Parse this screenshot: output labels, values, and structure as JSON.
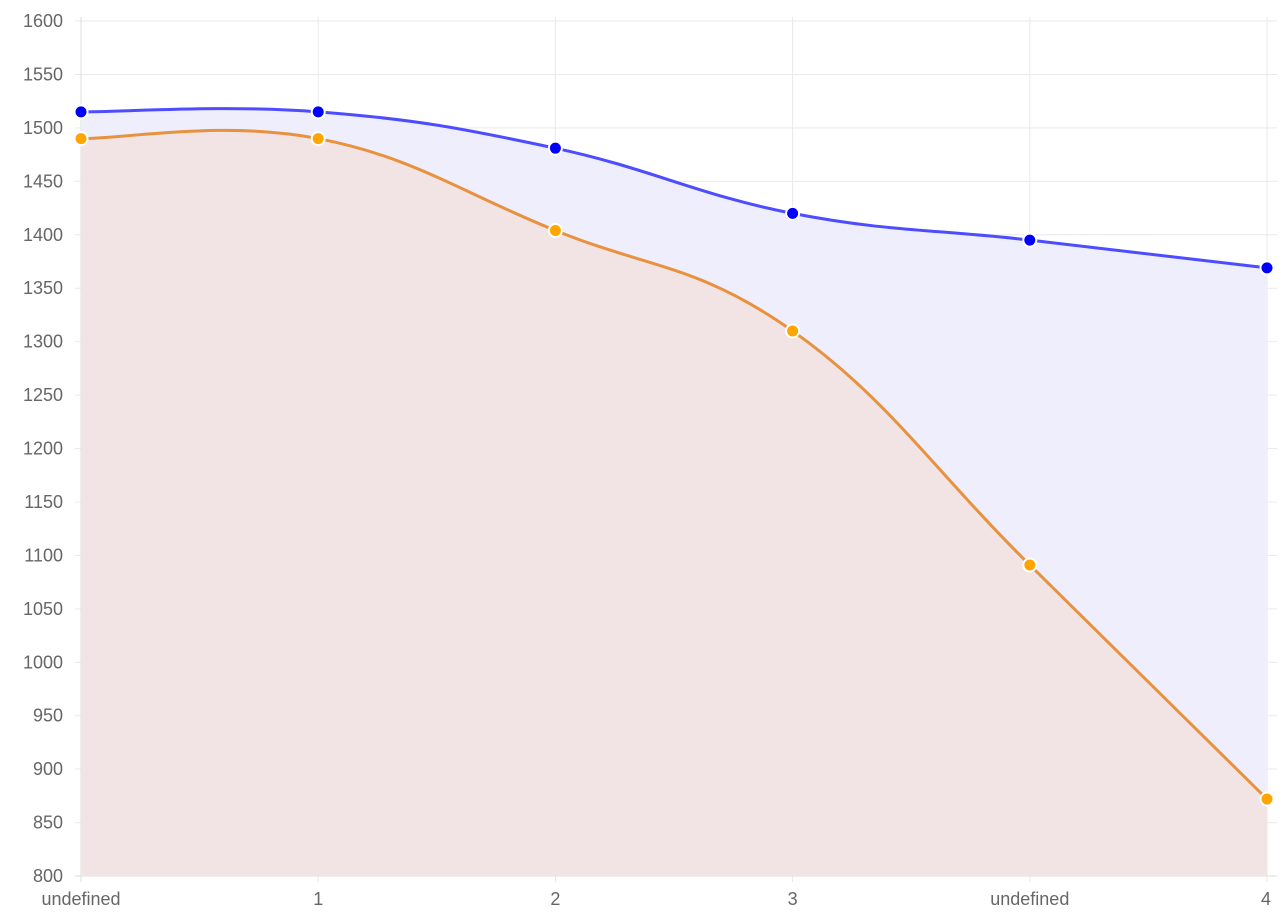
{
  "chart_data": {
    "type": "area",
    "categories": [
      "undefined",
      "1",
      "2",
      "3",
      "undefined",
      "4"
    ],
    "series": [
      {
        "values": [
          1515,
          1515,
          1481,
          1420,
          1395,
          1369
        ],
        "line_color": "#4d4dff",
        "point_color": "#0000ff",
        "fill_color": "#eeeefc"
      },
      {
        "values": [
          1490,
          1490,
          1404,
          1310,
          1091,
          872
        ],
        "line_color": "#e8913f",
        "point_color": "#ffa500",
        "fill_color": "#f2e4e4"
      }
    ],
    "ylim": [
      800,
      1600
    ],
    "yticks": [
      800,
      850,
      900,
      950,
      1000,
      1050,
      1100,
      1150,
      1200,
      1250,
      1300,
      1350,
      1400,
      1450,
      1500,
      1550,
      1600
    ],
    "grid": true,
    "legend": "none"
  }
}
